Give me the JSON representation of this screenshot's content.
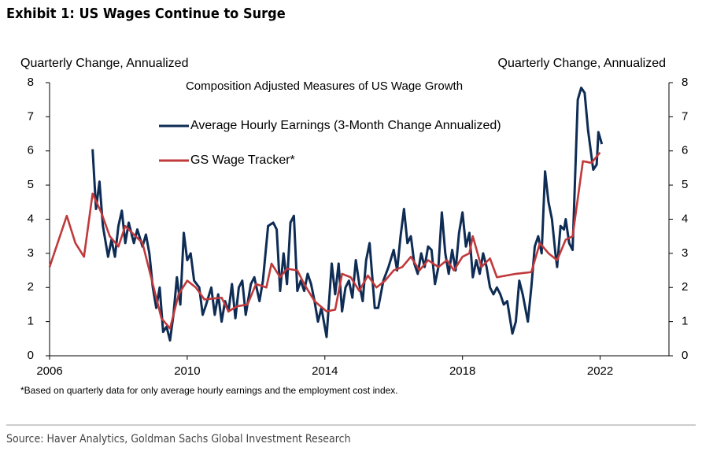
{
  "title": "Exhibit 1: US Wages Continue to Surge",
  "chart_data": {
    "type": "line",
    "subtitle": "Composition Adjusted Measures of US Wage Growth",
    "ylabel": "Quarterly Change, Annualized",
    "y2label": "Quarterly Change, Annualized",
    "xlim": [
      2006,
      2024
    ],
    "xticks": [
      2006,
      2010,
      2014,
      2018,
      2022
    ],
    "ylim": [
      0,
      8
    ],
    "yticks": [
      0,
      1,
      2,
      3,
      4,
      5,
      6,
      7,
      8
    ],
    "y2lim": [
      0,
      8
    ],
    "y2ticks": [
      0,
      1,
      2,
      3,
      4,
      5,
      6,
      7,
      8
    ],
    "grid": false,
    "series": [
      {
        "name": "Average Hourly Earnings (3-Month Change Annualized)",
        "color": "#0e2c54",
        "x": [
          2007.25,
          2007.35,
          2007.45,
          2007.55,
          2007.7,
          2007.8,
          2007.9,
          2008.0,
          2008.1,
          2008.2,
          2008.3,
          2008.45,
          2008.55,
          2008.7,
          2008.8,
          2008.9,
          2009.0,
          2009.1,
          2009.2,
          2009.3,
          2009.4,
          2009.5,
          2009.6,
          2009.7,
          2009.8,
          2009.9,
          2010.0,
          2010.1,
          2010.2,
          2010.35,
          2010.45,
          2010.55,
          2010.7,
          2010.8,
          2010.9,
          2011.0,
          2011.1,
          2011.2,
          2011.3,
          2011.4,
          2011.5,
          2011.6,
          2011.7,
          2011.85,
          2011.95,
          2012.1,
          2012.2,
          2012.35,
          2012.5,
          2012.6,
          2012.7,
          2012.8,
          2012.9,
          2013.0,
          2013.1,
          2013.2,
          2013.3,
          2013.4,
          2013.5,
          2013.6,
          2013.7,
          2013.8,
          2013.9,
          2014.05,
          2014.2,
          2014.3,
          2014.4,
          2014.5,
          2014.6,
          2014.7,
          2014.8,
          2014.9,
          2015.0,
          2015.1,
          2015.2,
          2015.3,
          2015.45,
          2015.55,
          2015.7,
          2015.85,
          2016.0,
          2016.1,
          2016.2,
          2016.3,
          2016.4,
          2016.5,
          2016.6,
          2016.7,
          2016.8,
          2016.9,
          2017.0,
          2017.1,
          2017.2,
          2017.3,
          2017.4,
          2017.5,
          2017.6,
          2017.7,
          2017.8,
          2017.9,
          2018.0,
          2018.1,
          2018.2,
          2018.3,
          2018.4,
          2018.5,
          2018.6,
          2018.7,
          2018.8,
          2018.9,
          2019.0,
          2019.1,
          2019.2,
          2019.3,
          2019.45,
          2019.55,
          2019.65,
          2019.75,
          2019.9,
          2020.0,
          2020.1,
          2020.2,
          2020.3,
          2020.4,
          2020.5,
          2020.6,
          2020.7,
          2020.75,
          2020.85,
          2020.95,
          2021.0,
          2021.1,
          2021.2,
          2021.35,
          2021.45,
          2021.55,
          2021.65,
          2021.8,
          2021.9,
          2021.95,
          2022.05
        ],
        "values": [
          6.05,
          4.3,
          5.1,
          3.8,
          2.9,
          3.4,
          2.9,
          3.8,
          4.25,
          3.3,
          3.9,
          3.3,
          3.7,
          3.2,
          3.55,
          3.0,
          2.0,
          1.4,
          2.0,
          0.7,
          0.85,
          0.45,
          1.2,
          2.3,
          1.5,
          3.6,
          2.8,
          3.0,
          2.2,
          2.0,
          1.2,
          1.5,
          2.0,
          1.2,
          1.8,
          1.0,
          1.6,
          1.3,
          2.1,
          1.1,
          2.0,
          2.2,
          1.2,
          2.1,
          2.3,
          1.6,
          2.2,
          3.8,
          3.9,
          3.7,
          1.9,
          3.0,
          2.1,
          3.9,
          4.1,
          1.9,
          2.2,
          1.9,
          2.4,
          2.1,
          1.6,
          1.0,
          1.4,
          0.55,
          2.7,
          1.8,
          2.7,
          1.3,
          2.0,
          2.2,
          1.7,
          2.8,
          2.1,
          1.6,
          2.8,
          3.3,
          1.4,
          1.4,
          2.2,
          2.6,
          3.1,
          2.5,
          3.5,
          4.3,
          3.3,
          3.5,
          2.7,
          2.4,
          3.0,
          2.6,
          3.2,
          3.1,
          2.1,
          2.6,
          4.2,
          3.0,
          2.4,
          3.1,
          2.5,
          3.6,
          4.2,
          3.2,
          3.6,
          2.3,
          2.8,
          2.4,
          3.0,
          2.6,
          2.0,
          1.8,
          2.0,
          1.8,
          1.5,
          1.6,
          0.65,
          1.0,
          2.2,
          1.8,
          1.0,
          2.0,
          3.2,
          3.5,
          3.0,
          5.4,
          4.5,
          4.0,
          3.0,
          2.6,
          3.8,
          3.7,
          4.0,
          3.3,
          3.1,
          7.5,
          7.85,
          7.7,
          6.6,
          5.45,
          5.6,
          6.55,
          6.2
        ]
      },
      {
        "name": "GS Wage Tracker*",
        "color": "#c0393b",
        "x": [
          2006.0,
          2006.5,
          2006.75,
          2007.0,
          2007.25,
          2007.5,
          2007.75,
          2008.0,
          2008.2,
          2008.7,
          2009.0,
          2009.25,
          2009.5,
          2009.75,
          2010.0,
          2010.25,
          2010.5,
          2011.0,
          2011.2,
          2011.45,
          2011.75,
          2012.0,
          2012.3,
          2012.45,
          2012.7,
          2012.9,
          2013.2,
          2013.4,
          2013.7,
          2014.05,
          2014.3,
          2014.5,
          2014.75,
          2015.0,
          2015.25,
          2015.5,
          2015.75,
          2016.0,
          2016.25,
          2016.5,
          2016.75,
          2017.0,
          2017.3,
          2017.55,
          2017.75,
          2018.0,
          2018.2,
          2018.3,
          2018.55,
          2018.8,
          2019.0,
          2019.55,
          2020.0,
          2020.25,
          2020.5,
          2020.75,
          2021.0,
          2021.2,
          2021.5,
          2021.75,
          2021.95,
          2022.0
        ],
        "values": [
          2.6,
          4.1,
          3.3,
          2.9,
          4.75,
          4.2,
          3.5,
          3.2,
          3.8,
          3.3,
          2.1,
          1.1,
          0.8,
          1.8,
          2.2,
          2.0,
          1.65,
          1.7,
          1.3,
          1.45,
          1.5,
          2.1,
          2.0,
          2.7,
          2.3,
          2.55,
          2.5,
          2.1,
          1.6,
          1.3,
          1.35,
          2.4,
          2.3,
          1.9,
          2.35,
          2.0,
          2.2,
          2.5,
          2.6,
          2.9,
          2.5,
          2.8,
          2.6,
          2.8,
          2.5,
          2.9,
          3.0,
          3.5,
          2.6,
          2.85,
          2.3,
          2.4,
          2.45,
          3.3,
          3.0,
          2.8,
          3.4,
          3.5,
          5.7,
          5.65,
          5.9,
          5.95
        ]
      }
    ],
    "footnote": "*Based on quarterly data for only average hourly earnings and the employment cost index."
  },
  "source": "Source: Haver Analytics, Goldman Sachs Global Investment Research"
}
